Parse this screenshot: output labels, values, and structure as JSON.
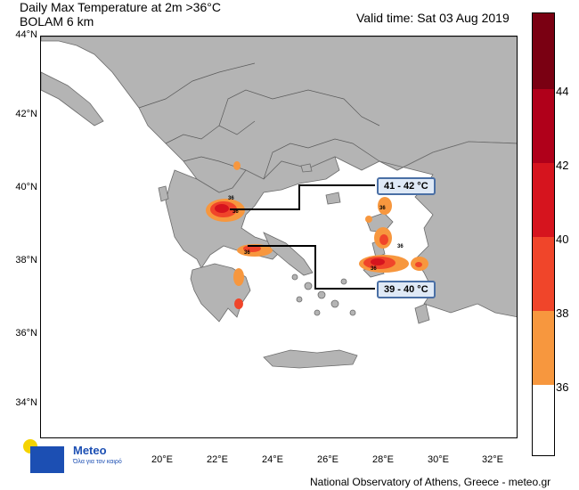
{
  "header": {
    "title": "Daily Max Temperature at 2m >36°C",
    "subtitle": "BOLAM 6 km",
    "valid_time": "Valid time: Sat 03 Aug 2019"
  },
  "axes": {
    "latitudes": [
      "44°N",
      "42°N",
      "40°N",
      "38°N",
      "36°N",
      "34°N"
    ],
    "longitudes": [
      "20°E",
      "22°E",
      "24°E",
      "26°E",
      "28°E",
      "30°E",
      "32°E"
    ]
  },
  "colorbar": {
    "labels": [
      "44",
      "42",
      "40",
      "38",
      "36"
    ],
    "colors": [
      "#7a0012",
      "#b0001a",
      "#d6141e",
      "#f0452a",
      "#f7973e",
      "#ffffff"
    ]
  },
  "callouts": {
    "upper": "41 - 42 °C",
    "lower": "39 - 40 °C"
  },
  "point_labels": [
    "36",
    "36",
    "36",
    "36",
    "36",
    "36"
  ],
  "logo": {
    "name": "Meteo",
    "tagline": "Όλα για τον καιρό"
  },
  "credit": "National Observatory of Athens, Greece - meteo.gr",
  "colors": {
    "land": "#b4b4b4",
    "sea": "#ffffff",
    "border": "#5a5a5a"
  }
}
